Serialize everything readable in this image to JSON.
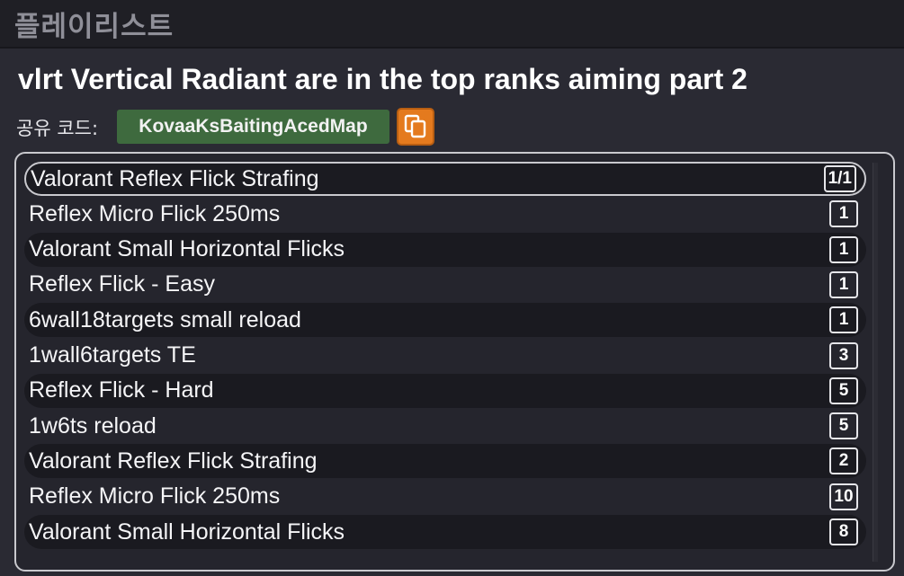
{
  "header": {
    "title": "플레이리스트"
  },
  "playlist": {
    "name": "vlrt Vertical Radiant are in the top ranks aiming part 2",
    "share_label": "공유 코드:",
    "share_code": "KovaaKsBaitingAcedMap",
    "copy_icon": "copy-icon"
  },
  "colors": {
    "share_code_bg": "#3e6a3e",
    "copy_button_bg": "#e47a1e"
  },
  "scenarios": [
    {
      "title": "Valorant Reflex Flick Strafing",
      "count": "1/1",
      "selected": true
    },
    {
      "title": "Reflex Micro Flick 250ms",
      "count": "1"
    },
    {
      "title": "Valorant Small Horizontal Flicks",
      "count": "1"
    },
    {
      "title": "Reflex Flick - Easy",
      "count": "1"
    },
    {
      "title": "6wall18targets small reload",
      "count": "1"
    },
    {
      "title": "1wall6targets TE",
      "count": "3"
    },
    {
      "title": "Reflex Flick - Hard",
      "count": "5"
    },
    {
      "title": "1w6ts reload",
      "count": "5"
    },
    {
      "title": "Valorant Reflex Flick Strafing",
      "count": "2"
    },
    {
      "title": "Reflex Micro Flick 250ms",
      "count": "10"
    },
    {
      "title": "Valorant Small Horizontal Flicks",
      "count": "8"
    }
  ]
}
